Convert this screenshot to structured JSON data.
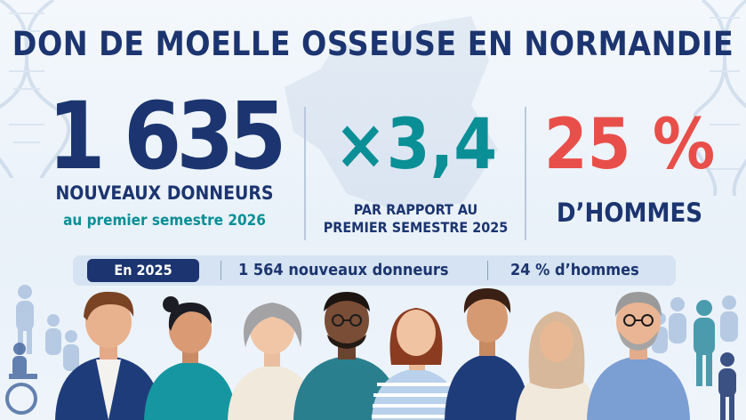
{
  "title": "DON DE MOELLE OSSEUSE EN NORMANDIE",
  "stat_new_donors": {
    "value": "1 635",
    "label": "NOUVEAUX DONNEURS",
    "sublabel": "au premier semestre 2026"
  },
  "stat_ratio": {
    "value": "×3,4",
    "label_line1": "PAR RAPPORT AU",
    "label_line2": "PREMIER SEMESTRE 2025"
  },
  "stat_men": {
    "value": "25 %",
    "label": "D’HOMMES"
  },
  "summary_bar": {
    "pill": "En 2025",
    "donors": "1 564 nouveaux donneurs",
    "men": "24 % d’hommes"
  },
  "colors": {
    "navy": "#1c3570",
    "teal": "#0a8f96",
    "red": "#e84f4a"
  }
}
